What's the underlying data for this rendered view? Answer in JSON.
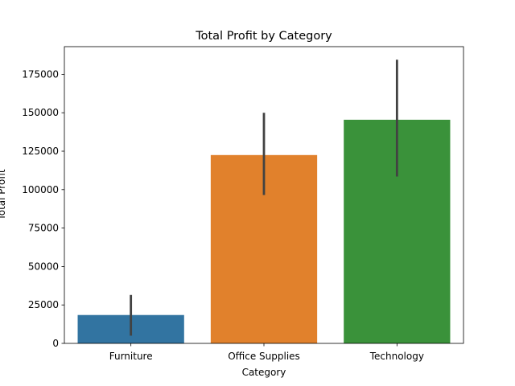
{
  "chart_data": {
    "type": "bar",
    "title": "Total Profit by Category",
    "xlabel": "Category",
    "ylabel": "Total Profit",
    "categories": [
      "Furniture",
      "Office Supplies",
      "Technology"
    ],
    "values": [
      18451,
      122491,
      145455
    ],
    "error_bars": [
      [
        5000,
        31500
      ],
      [
        96500,
        150000
      ],
      [
        108500,
        184500
      ]
    ],
    "ylim": [
      0,
      193000
    ],
    "yticks": [
      0,
      25000,
      50000,
      75000,
      100000,
      125000,
      150000,
      175000
    ],
    "colors": [
      "#3274a1",
      "#e1812c",
      "#3a923a"
    ],
    "error_color": "#424242",
    "grid": false,
    "legend": "none"
  }
}
